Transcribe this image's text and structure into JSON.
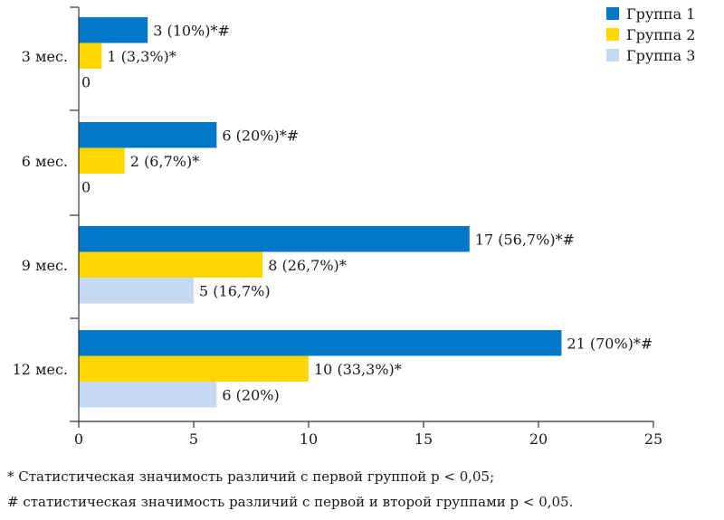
{
  "chart_data": {
    "type": "bar",
    "orientation": "horizontal",
    "categories": [
      "3 мес.",
      "6 мес.",
      "9 мес.",
      "12 мес."
    ],
    "series": [
      {
        "name": "Группа 1",
        "color": "#0077c8",
        "values": [
          3,
          6,
          17,
          21
        ],
        "labels": [
          "3 (10%)*#",
          "6 (20%)*#",
          "17 (56,7%)*#",
          "21 (70%)*#"
        ]
      },
      {
        "name": "Группа 2",
        "color": "#ffd700",
        "values": [
          1,
          2,
          8,
          10
        ],
        "labels": [
          "1 (3,3%)*",
          "2 (6,7%)*",
          "8 (26,7%)*",
          "10 (33,3%)*"
        ]
      },
      {
        "name": "Группа 3",
        "color": "#c5d9f1",
        "values": [
          0,
          0,
          5,
          6
        ],
        "labels": [
          "0",
          "0",
          "5 (16,7%)",
          "6 (20%)"
        ]
      }
    ],
    "xlim": [
      0,
      25
    ],
    "xticks": [
      "0",
      "5",
      "10",
      "15",
      "20",
      "25"
    ],
    "grid": false,
    "legend_position": "top-right"
  },
  "footnotes": [
    "* Статистическая значимость различий с первой группой p < 0,05;",
    "# статистическая значимость различий с первой и второй группами p < 0,05."
  ]
}
